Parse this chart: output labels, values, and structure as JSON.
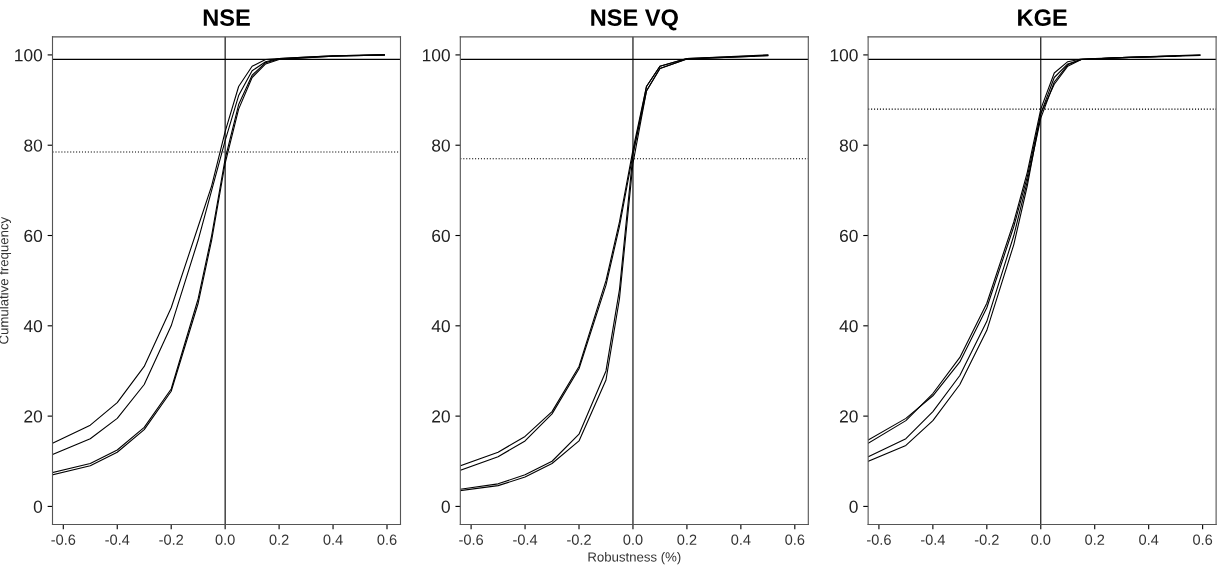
{
  "chart_data": [
    {
      "type": "line",
      "title": "NSE",
      "ylabel": "Cumulative frequency",
      "xlim": [
        -0.64,
        0.65
      ],
      "ylim": [
        -4,
        104
      ],
      "xticks": [
        {
          "value": -0.6,
          "label": "-0.6"
        },
        {
          "value": -0.4,
          "label": "-0.4"
        },
        {
          "value": -0.2,
          "label": "-0.2"
        },
        {
          "value": 0,
          "label": "0.0"
        },
        {
          "value": 0.2,
          "label": "0.2"
        },
        {
          "value": 0.4,
          "label": "0.4"
        },
        {
          "value": 0.6,
          "label": "0.6"
        }
      ],
      "yticks": [
        0,
        20,
        40,
        60,
        80,
        100
      ],
      "grid": false,
      "legend": false,
      "marker": "none",
      "line_style": "solid",
      "ref_lines": [
        {
          "axis": "y",
          "value": 99,
          "color": "#000000",
          "line_style": "solid"
        },
        {
          "axis": "x",
          "value": 0,
          "color": "#000000",
          "line_style": "solid"
        },
        {
          "axis": "y",
          "value": 78.5,
          "color": "#000000",
          "line_style": "dotted"
        }
      ],
      "series": [
        {
          "color": "#000000",
          "x": [
            -0.64,
            -0.5,
            -0.4,
            -0.3,
            -0.2,
            -0.1,
            -0.05,
            0,
            0.05,
            0.1,
            0.15,
            0.2,
            0.3,
            0.4,
            0.59
          ],
          "values": [
            14,
            18,
            23,
            31,
            44,
            62,
            71,
            83,
            93,
            97.5,
            99,
            99.2,
            99.5,
            99.8,
            100
          ]
        },
        {
          "color": "#000000",
          "x": [
            -0.64,
            -0.5,
            -0.4,
            -0.3,
            -0.2,
            -0.1,
            -0.05,
            0,
            0.05,
            0.1,
            0.15,
            0.2,
            0.4,
            0.59
          ],
          "values": [
            11.5,
            15,
            19.5,
            27,
            40,
            59,
            70,
            81,
            91,
            96.5,
            98.5,
            99.2,
            99.8,
            100
          ]
        },
        {
          "color": "#000000",
          "x": [
            -0.64,
            -0.5,
            -0.4,
            -0.3,
            -0.2,
            -0.1,
            -0.05,
            0,
            0.05,
            0.1,
            0.15,
            0.2,
            0.4,
            0.59
          ],
          "values": [
            7.5,
            9.5,
            12.5,
            17.5,
            26,
            46,
            60,
            77,
            89,
            95.5,
            98.3,
            99.1,
            99.7,
            100
          ]
        },
        {
          "color": "#000000",
          "x": [
            -0.64,
            -0.5,
            -0.4,
            -0.3,
            -0.2,
            -0.1,
            -0.05,
            0,
            0.05,
            0.1,
            0.15,
            0.2,
            0.4,
            0.59
          ],
          "values": [
            7,
            9,
            12,
            17,
            25.5,
            45,
            59,
            76,
            88,
            95,
            98,
            99,
            99.7,
            100
          ]
        }
      ]
    },
    {
      "type": "line",
      "title": "NSE VQ",
      "xlabel": "Robustness (%)",
      "xlim": [
        -0.64,
        0.65
      ],
      "ylim": [
        -4,
        104
      ],
      "xticks": [
        {
          "value": -0.6,
          "label": "-0.6"
        },
        {
          "value": -0.4,
          "label": "-0.4"
        },
        {
          "value": -0.2,
          "label": "-0.2"
        },
        {
          "value": 0,
          "label": "0.0"
        },
        {
          "value": 0.2,
          "label": "0.2"
        },
        {
          "value": 0.4,
          "label": "0.4"
        },
        {
          "value": 0.6,
          "label": "0.6"
        }
      ],
      "yticks": [
        0,
        20,
        40,
        60,
        80,
        100
      ],
      "grid": false,
      "legend": false,
      "marker": "none",
      "line_style": "solid",
      "ref_lines": [
        {
          "axis": "y",
          "value": 99,
          "color": "#000000",
          "line_style": "solid"
        },
        {
          "axis": "x",
          "value": 0,
          "color": "#000000",
          "line_style": "solid"
        },
        {
          "axis": "y",
          "value": 77,
          "color": "#000000",
          "line_style": "dotted"
        }
      ],
      "series": [
        {
          "color": "#000000",
          "x": [
            -0.64,
            -0.5,
            -0.4,
            -0.3,
            -0.2,
            -0.1,
            -0.05,
            0,
            0.05,
            0.1,
            0.2,
            0.5
          ],
          "values": [
            9,
            12,
            15.5,
            21,
            31,
            50,
            63,
            79,
            93,
            97.5,
            99.2,
            100
          ]
        },
        {
          "color": "#000000",
          "x": [
            -0.64,
            -0.5,
            -0.4,
            -0.3,
            -0.2,
            -0.1,
            -0.05,
            0,
            0.05,
            0.1,
            0.2,
            0.5
          ],
          "values": [
            8,
            11,
            14.5,
            20.5,
            30.5,
            49,
            62,
            78,
            92,
            97,
            99.1,
            99.8
          ]
        },
        {
          "color": "#000000",
          "x": [
            -0.64,
            -0.5,
            -0.4,
            -0.3,
            -0.2,
            -0.1,
            -0.05,
            0,
            0.05,
            0.1,
            0.2,
            0.5
          ],
          "values": [
            3.8,
            5,
            7,
            10,
            16,
            30,
            48,
            78,
            93,
            97.5,
            99.2,
            99.9
          ]
        },
        {
          "color": "#000000",
          "x": [
            -0.64,
            -0.5,
            -0.4,
            -0.3,
            -0.2,
            -0.1,
            -0.05,
            0,
            0.05,
            0.1,
            0.2,
            0.45
          ],
          "values": [
            3.5,
            4.6,
            6.5,
            9.5,
            14.5,
            28,
            46,
            76,
            92,
            97,
            99.1,
            99.7
          ]
        }
      ]
    },
    {
      "type": "line",
      "title": "KGE",
      "xlim": [
        -0.64,
        0.65
      ],
      "ylim": [
        -4,
        104
      ],
      "xticks": [
        {
          "value": -0.6,
          "label": "-0.6"
        },
        {
          "value": -0.4,
          "label": "-0.4"
        },
        {
          "value": -0.2,
          "label": "-0.2"
        },
        {
          "value": 0,
          "label": "0.0"
        },
        {
          "value": 0.2,
          "label": "0.2"
        },
        {
          "value": 0.4,
          "label": "0.4"
        },
        {
          "value": 0.6,
          "label": "0.6"
        }
      ],
      "yticks": [
        0,
        20,
        40,
        60,
        80,
        100
      ],
      "grid": false,
      "legend": false,
      "marker": "none",
      "line_style": "solid",
      "ref_lines": [
        {
          "axis": "y",
          "value": 99,
          "color": "#000000",
          "line_style": "solid"
        },
        {
          "axis": "x",
          "value": 0,
          "color": "#000000",
          "line_style": "solid"
        },
        {
          "axis": "y",
          "value": 88,
          "color": "#000000",
          "line_style": "dotted"
        }
      ],
      "series": [
        {
          "color": "#000000",
          "x": [
            -0.64,
            -0.5,
            -0.4,
            -0.3,
            -0.2,
            -0.1,
            -0.05,
            0,
            0.05,
            0.1,
            0.15,
            0.3,
            0.59
          ],
          "values": [
            14,
            19,
            25,
            33,
            45,
            63,
            74,
            88,
            96,
            98.5,
            99.1,
            99.4,
            100
          ]
        },
        {
          "color": "#000000",
          "x": [
            -0.64,
            -0.5,
            -0.4,
            -0.3,
            -0.2,
            -0.1,
            -0.05,
            0,
            0.05,
            0.1,
            0.15,
            0.3,
            0.52
          ],
          "values": [
            14.7,
            19.5,
            24.5,
            32,
            44,
            62,
            73,
            87,
            95,
            98,
            99,
            99.4,
            99.8
          ]
        },
        {
          "color": "#000000",
          "x": [
            -0.64,
            -0.5,
            -0.4,
            -0.3,
            -0.2,
            -0.1,
            -0.05,
            0,
            0.05,
            0.1,
            0.15,
            0.3,
            0.59
          ],
          "values": [
            11,
            15,
            21,
            29,
            41,
            60,
            72,
            86,
            94,
            97.8,
            99,
            99.4,
            99.9
          ]
        },
        {
          "color": "#000000",
          "x": [
            -0.64,
            -0.5,
            -0.4,
            -0.3,
            -0.2,
            -0.1,
            -0.05,
            0,
            0.05,
            0.1,
            0.15,
            0.3,
            0.5
          ],
          "values": [
            10,
            13.5,
            19,
            27,
            39,
            58,
            71,
            87,
            93.5,
            97.5,
            99,
            99.4,
            99.7
          ]
        }
      ]
    }
  ]
}
